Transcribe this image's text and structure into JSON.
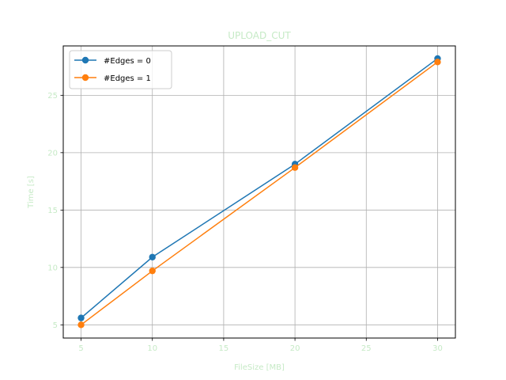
{
  "colors": {
    "text_accent": "#c6eac6",
    "grid": "#b0b0b0",
    "axes": "#000000",
    "series": [
      "#1f77b4",
      "#ff7f0e"
    ]
  },
  "chart_data": {
    "type": "line",
    "title": "UPLOAD_CUT",
    "xlabel": "FileSize [MB]",
    "ylabel": "Time [s]",
    "xlim": [
      3.75,
      31.25
    ],
    "ylim": [
      3.85,
      29.3
    ],
    "xticks": [
      5,
      10,
      15,
      20,
      25,
      30
    ],
    "yticks": [
      5,
      10,
      15,
      20,
      25
    ],
    "grid": true,
    "legend_position": "top-left",
    "markers": "circle",
    "series": [
      {
        "name": "#Edges = 0",
        "x": [
          5,
          10,
          20,
          30
        ],
        "y": [
          5.6,
          10.9,
          19.0,
          28.2
        ]
      },
      {
        "name": "#Edges = 1",
        "x": [
          5,
          10,
          20,
          30
        ],
        "y": [
          5.0,
          9.7,
          18.7,
          27.9
        ]
      }
    ]
  }
}
